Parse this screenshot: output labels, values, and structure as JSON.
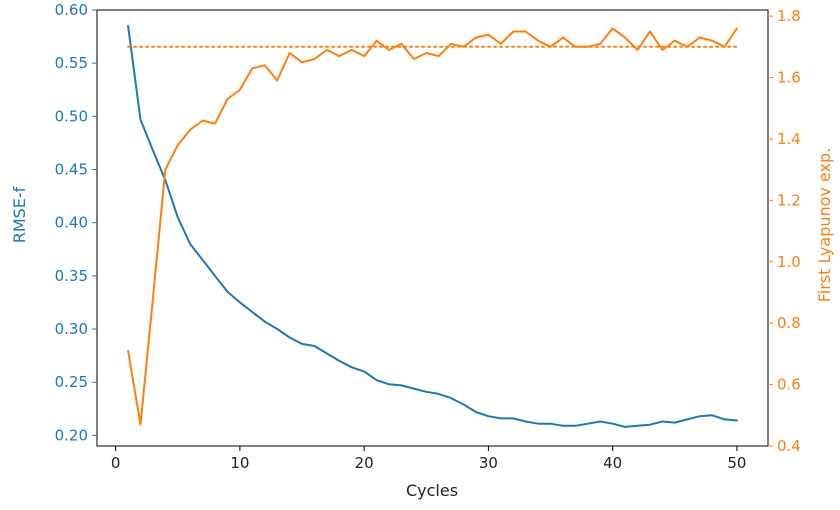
{
  "chart_data": {
    "type": "line",
    "xlabel": "Cycles",
    "ylabel_left": "RMSE-f",
    "ylabel_right": "First Lyapunov exp.",
    "xlim": [
      -1.5,
      52.5
    ],
    "ylim_left": [
      0.19,
      0.6
    ],
    "ylim_right": [
      0.4,
      1.82
    ],
    "x_ticks": [
      0,
      10,
      20,
      30,
      40,
      50
    ],
    "y_left_ticks": [
      0.2,
      0.25,
      0.3,
      0.35,
      0.4,
      0.45,
      0.5,
      0.55,
      0.6
    ],
    "y_right_ticks": [
      0.4,
      0.6,
      0.8,
      1.0,
      1.2,
      1.4,
      1.6,
      1.8
    ],
    "grid": false,
    "x": [
      1,
      2,
      3,
      4,
      5,
      6,
      7,
      8,
      9,
      10,
      11,
      12,
      13,
      14,
      15,
      16,
      17,
      18,
      19,
      20,
      21,
      22,
      23,
      24,
      25,
      26,
      27,
      28,
      29,
      30,
      31,
      32,
      33,
      34,
      35,
      36,
      37,
      38,
      39,
      40,
      41,
      42,
      43,
      44,
      45,
      46,
      47,
      48,
      49,
      50
    ],
    "series": [
      {
        "axis": "left",
        "color": "#1f77b4",
        "values": [
          0.585,
          0.497,
          0.468,
          0.44,
          0.405,
          0.38,
          0.365,
          0.35,
          0.335,
          0.325,
          0.316,
          0.307,
          0.3,
          0.292,
          0.286,
          0.284,
          0.277,
          0.27,
          0.264,
          0.26,
          0.252,
          0.248,
          0.247,
          0.244,
          0.241,
          0.239,
          0.235,
          0.229,
          0.222,
          0.218,
          0.216,
          0.216,
          0.213,
          0.211,
          0.211,
          0.209,
          0.209,
          0.211,
          0.213,
          0.211,
          0.208,
          0.209,
          0.21,
          0.213,
          0.212,
          0.215,
          0.218,
          0.219,
          0.215,
          0.214
        ]
      },
      {
        "axis": "right",
        "color": "#ff7f0e",
        "values": [
          0.71,
          0.47,
          0.88,
          1.3,
          1.38,
          1.43,
          1.46,
          1.45,
          1.53,
          1.56,
          1.63,
          1.64,
          1.59,
          1.68,
          1.65,
          1.66,
          1.69,
          1.67,
          1.69,
          1.67,
          1.72,
          1.69,
          1.71,
          1.66,
          1.68,
          1.67,
          1.71,
          1.7,
          1.73,
          1.74,
          1.71,
          1.75,
          1.75,
          1.72,
          1.7,
          1.73,
          1.7,
          1.7,
          1.71,
          1.76,
          1.73,
          1.69,
          1.75,
          1.69,
          1.72,
          1.7,
          1.73,
          1.72,
          1.7,
          1.76
        ]
      },
      {
        "axis": "right",
        "color": "#ff7f0e",
        "style": "dotted",
        "x": [
          1,
          50
        ],
        "values": [
          1.7,
          1.7
        ]
      }
    ]
  }
}
